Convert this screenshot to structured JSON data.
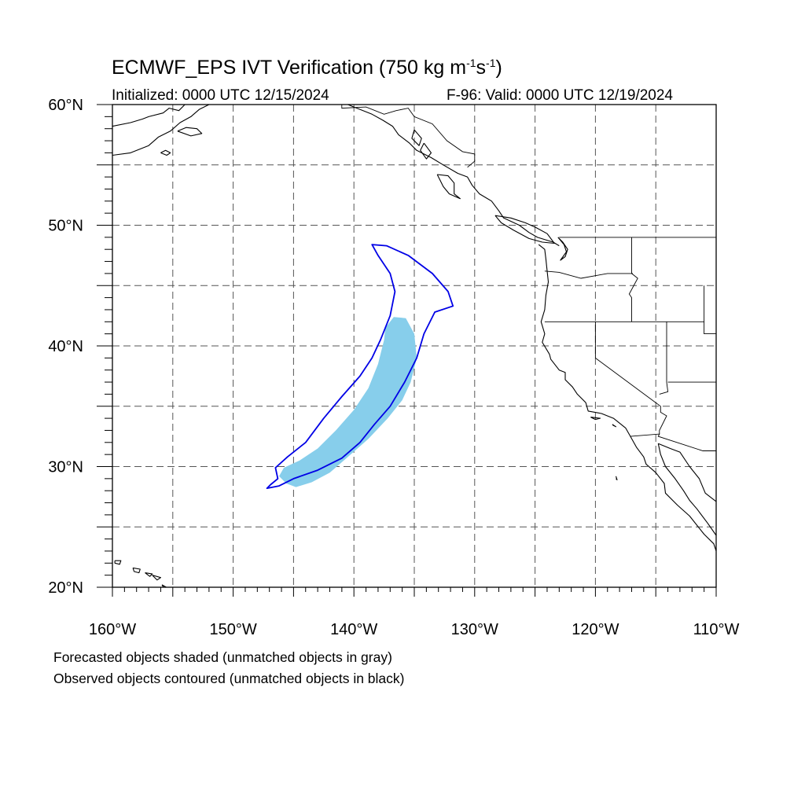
{
  "title": {
    "main_prefix": "ECMWF_EPS IVT Verification (750 kg m",
    "exp1": "-1",
    "mid": "s",
    "exp2": "-1",
    "suffix": ")"
  },
  "initialized": "Initialized: 0000 UTC 12/15/2024",
  "valid": "F-96: Valid: 0000 UTC 12/19/2024",
  "footnote_forecast": "Forecasted objects shaded (unmatched objects in gray)",
  "footnote_observed": "Observed objects contoured (unmatched objects in black)",
  "map": {
    "lon_range": [
      -160,
      -110
    ],
    "lat_range": [
      20,
      60
    ],
    "lon_labels": [
      {
        "lon": -160,
        "text": "160°W"
      },
      {
        "lon": -150,
        "text": "150°W"
      },
      {
        "lon": -140,
        "text": "140°W"
      },
      {
        "lon": -130,
        "text": "130°W"
      },
      {
        "lon": -120,
        "text": "120°W"
      },
      {
        "lon": -110,
        "text": "110°W"
      }
    ],
    "lat_labels": [
      {
        "lat": 60,
        "text": "60°N"
      },
      {
        "lat": 50,
        "text": "50°N"
      },
      {
        "lat": 40,
        "text": "40°N"
      },
      {
        "lat": 30,
        "text": "30°N"
      },
      {
        "lat": 20,
        "text": "20°N"
      }
    ],
    "grid_spacing_deg": 5,
    "forecast_fill_color": "#87ceeb",
    "observed_contour_color": "#0000e6",
    "forecast_object": [
      [
        -145.6,
        28.6
      ],
      [
        -146.2,
        29.2
      ],
      [
        -145.8,
        29.9
      ],
      [
        -144.5,
        30.5
      ],
      [
        -143.0,
        31.5
      ],
      [
        -141.5,
        33.0
      ],
      [
        -140.0,
        34.7
      ],
      [
        -138.8,
        36.5
      ],
      [
        -138.0,
        38.5
      ],
      [
        -137.5,
        40.5
      ],
      [
        -137.4,
        41.5
      ],
      [
        -136.7,
        42.4
      ],
      [
        -135.7,
        42.3
      ],
      [
        -135.0,
        41.0
      ],
      [
        -134.8,
        39.0
      ],
      [
        -135.3,
        37.0
      ],
      [
        -136.0,
        35.5
      ],
      [
        -137.2,
        34.0
      ],
      [
        -138.8,
        32.3
      ],
      [
        -140.5,
        30.8
      ],
      [
        -142.0,
        29.5
      ],
      [
        -143.5,
        28.7
      ],
      [
        -144.8,
        28.3
      ]
    ],
    "observed_object": [
      [
        -147.2,
        28.2
      ],
      [
        -146.2,
        28.4
      ],
      [
        -145.0,
        29.0
      ],
      [
        -143.0,
        29.7
      ],
      [
        -141.0,
        30.7
      ],
      [
        -139.5,
        32.0
      ],
      [
        -138.3,
        33.5
      ],
      [
        -137.0,
        35.0
      ],
      [
        -135.8,
        37.0
      ],
      [
        -134.8,
        39.0
      ],
      [
        -134.2,
        41.0
      ],
      [
        -133.3,
        42.8
      ],
      [
        -131.8,
        43.3
      ],
      [
        -132.2,
        44.5
      ],
      [
        -133.5,
        46.0
      ],
      [
        -135.5,
        47.5
      ],
      [
        -137.3,
        48.3
      ],
      [
        -138.5,
        48.4
      ],
      [
        -138.0,
        47.5
      ],
      [
        -137.0,
        46.0
      ],
      [
        -136.6,
        44.5
      ],
      [
        -137.0,
        42.5
      ],
      [
        -137.8,
        40.5
      ],
      [
        -138.5,
        39.0
      ],
      [
        -139.5,
        37.5
      ],
      [
        -141.0,
        35.8
      ],
      [
        -142.5,
        34.0
      ],
      [
        -144.0,
        32.0
      ],
      [
        -145.5,
        30.8
      ],
      [
        -146.5,
        29.9
      ],
      [
        -146.3,
        29.0
      ],
      [
        -146.9,
        28.5
      ]
    ],
    "coastlines": [
      [
        [
          -160,
          58.2
        ],
        [
          -158.5,
          58.5
        ],
        [
          -157.5,
          58.8
        ],
        [
          -157.0,
          59.0
        ],
        [
          -155.8,
          59.3
        ],
        [
          -155.3,
          59.7
        ],
        [
          -154.5,
          59.5
        ],
        [
          -154.0,
          60.0
        ]
      ],
      [
        [
          -160,
          55.8
        ],
        [
          -158.5,
          56.0
        ],
        [
          -157.0,
          56.6
        ],
        [
          -156.2,
          57.3
        ],
        [
          -155.2,
          57.8
        ],
        [
          -154.4,
          58.5
        ],
        [
          -153.5,
          59.0
        ],
        [
          -152.8,
          59.6
        ],
        [
          -152.0,
          60.0
        ]
      ],
      [
        [
          -154.6,
          57.8
        ],
        [
          -153.5,
          57.4
        ],
        [
          -152.6,
          57.6
        ],
        [
          -153.0,
          58.0
        ],
        [
          -153.9,
          58.1
        ],
        [
          -154.6,
          57.8
        ]
      ],
      [
        [
          -156.0,
          56.0
        ],
        [
          -155.5,
          55.8
        ],
        [
          -155.2,
          56.0
        ],
        [
          -155.6,
          56.2
        ],
        [
          -156.0,
          56.0
        ]
      ],
      [
        [
          -140.5,
          60.0
        ],
        [
          -140.0,
          59.8
        ],
        [
          -138.5,
          59.2
        ],
        [
          -137.6,
          58.7
        ],
        [
          -136.8,
          58.2
        ],
        [
          -136.3,
          57.5
        ],
        [
          -135.4,
          56.8
        ],
        [
          -134.8,
          56.2
        ],
        [
          -133.6,
          55.6
        ],
        [
          -132.6,
          55.0
        ],
        [
          -131.4,
          54.3
        ],
        [
          -130.6,
          54.0
        ],
        [
          -130.2,
          53.3
        ],
        [
          -129.6,
          52.6
        ],
        [
          -128.6,
          52.0
        ],
        [
          -128.0,
          51.2
        ],
        [
          -127.6,
          50.6
        ],
        [
          -126.3,
          50.0
        ],
        [
          -125.5,
          49.4
        ],
        [
          -124.8,
          49.0
        ],
        [
          -123.5,
          48.6
        ],
        [
          -123.0,
          48.3
        ]
      ],
      [
        [
          -133.1,
          54.2
        ],
        [
          -132.2,
          54.1
        ],
        [
          -131.7,
          53.5
        ],
        [
          -131.7,
          52.6
        ],
        [
          -131.2,
          52.2
        ],
        [
          -132.1,
          52.6
        ],
        [
          -132.6,
          53.2
        ],
        [
          -133.1,
          54.2
        ]
      ],
      [
        [
          -128.3,
          50.8
        ],
        [
          -127.0,
          50.6
        ],
        [
          -125.8,
          50.2
        ],
        [
          -124.9,
          49.8
        ],
        [
          -124.0,
          49.3
        ],
        [
          -123.4,
          48.5
        ],
        [
          -124.4,
          48.6
        ],
        [
          -125.5,
          48.9
        ],
        [
          -126.8,
          49.6
        ],
        [
          -127.8,
          50.2
        ],
        [
          -128.3,
          50.8
        ]
      ],
      [
        [
          -124.7,
          48.4
        ],
        [
          -124.2,
          48.0
        ],
        [
          -124.1,
          47.2
        ],
        [
          -124.0,
          46.2
        ],
        [
          -123.9,
          45.3
        ],
        [
          -124.1,
          44.2
        ],
        [
          -124.2,
          43.0
        ],
        [
          -124.5,
          42.0
        ],
        [
          -124.2,
          41.0
        ],
        [
          -124.4,
          40.3
        ],
        [
          -123.8,
          39.3
        ],
        [
          -123.7,
          38.9
        ],
        [
          -123.0,
          38.0
        ],
        [
          -122.5,
          37.8
        ],
        [
          -122.5,
          37.2
        ],
        [
          -121.9,
          36.6
        ],
        [
          -121.5,
          36.0
        ],
        [
          -120.8,
          35.3
        ],
        [
          -120.6,
          34.6
        ],
        [
          -119.5,
          34.4
        ],
        [
          -118.5,
          34.0
        ],
        [
          -117.5,
          33.2
        ],
        [
          -117.1,
          32.5
        ],
        [
          -116.6,
          31.6
        ],
        [
          -116.0,
          30.8
        ],
        [
          -115.8,
          30.2
        ],
        [
          -115.0,
          29.5
        ],
        [
          -114.3,
          28.6
        ],
        [
          -114.2,
          27.8
        ],
        [
          -113.2,
          26.8
        ],
        [
          -112.2,
          25.9
        ],
        [
          -111.0,
          24.4
        ],
        [
          -110.2,
          23.6
        ],
        [
          -110.0,
          23.0
        ]
      ],
      [
        [
          -114.8,
          31.9
        ],
        [
          -114.6,
          31.0
        ],
        [
          -114.2,
          30.0
        ],
        [
          -113.4,
          29.0
        ],
        [
          -112.7,
          28.0
        ],
        [
          -112.2,
          27.2
        ],
        [
          -111.6,
          26.5
        ],
        [
          -110.7,
          25.3
        ],
        [
          -110.0,
          24.3
        ]
      ],
      [
        [
          -114.8,
          31.9
        ],
        [
          -113.8,
          31.5
        ],
        [
          -113.0,
          31.2
        ],
        [
          -112.2,
          30.0
        ],
        [
          -111.4,
          29.0
        ],
        [
          -110.9,
          27.8
        ],
        [
          -110.0,
          27.1
        ]
      ],
      [
        [
          -123.1,
          49.0
        ],
        [
          -122.6,
          48.4
        ],
        [
          -122.4,
          47.8
        ],
        [
          -122.9,
          47.1
        ],
        [
          -122.5,
          47.4
        ],
        [
          -122.3,
          48.0
        ],
        [
          -122.7,
          48.6
        ],
        [
          -123.1,
          49.0
        ]
      ],
      [
        [
          -135.0,
          57.9
        ],
        [
          -134.4,
          57.2
        ],
        [
          -134.6,
          56.6
        ],
        [
          -135.2,
          57.2
        ],
        [
          -135.0,
          57.9
        ]
      ],
      [
        [
          -134.2,
          56.8
        ],
        [
          -133.6,
          56.0
        ],
        [
          -134.0,
          55.5
        ],
        [
          -134.5,
          56.2
        ],
        [
          -134.2,
          56.8
        ]
      ],
      [
        [
          -120.4,
          34.1
        ],
        [
          -119.6,
          34.0
        ],
        [
          -120.0,
          33.9
        ],
        [
          -120.4,
          34.1
        ]
      ],
      [
        [
          -118.6,
          33.5
        ],
        [
          -118.3,
          33.3
        ],
        [
          -118.5,
          33.4
        ],
        [
          -118.6,
          33.5
        ]
      ],
      [
        [
          -118.3,
          29.2
        ],
        [
          -118.2,
          28.9
        ],
        [
          -118.3,
          29.0
        ]
      ],
      [
        [
          -159.8,
          22.2
        ],
        [
          -159.3,
          22.2
        ],
        [
          -159.4,
          21.9
        ],
        [
          -159.8,
          22.0
        ],
        [
          -159.8,
          22.2
        ]
      ],
      [
        [
          -158.3,
          21.6
        ],
        [
          -157.7,
          21.5
        ],
        [
          -157.8,
          21.2
        ],
        [
          -158.2,
          21.3
        ],
        [
          -158.3,
          21.6
        ]
      ],
      [
        [
          -157.3,
          21.2
        ],
        [
          -156.7,
          21.1
        ],
        [
          -156.9,
          20.9
        ],
        [
          -157.3,
          21.2
        ]
      ],
      [
        [
          -156.7,
          21.0
        ],
        [
          -156.0,
          20.8
        ],
        [
          -156.3,
          20.6
        ],
        [
          -156.7,
          21.0
        ]
      ],
      [
        [
          -155.9,
          20.2
        ],
        [
          -155.0,
          19.7
        ],
        [
          -155.3,
          19.3
        ],
        [
          -155.9,
          20.2
        ]
      ]
    ],
    "borders": [
      [
        [
          -141.0,
          60.0
        ],
        [
          -141.0,
          59.7
        ],
        [
          -139.0,
          59.8
        ],
        [
          -137.5,
          59.2
        ],
        [
          -136.5,
          59.5
        ],
        [
          -135.5,
          59.7
        ],
        [
          -135.0,
          59.0
        ],
        [
          -133.5,
          58.4
        ],
        [
          -132.3,
          57.0
        ],
        [
          -131.0,
          56.1
        ],
        [
          -130.0,
          55.9
        ],
        [
          -130.0,
          55.3
        ],
        [
          -130.6,
          54.8
        ]
      ],
      [
        [
          -123.0,
          49.0
        ],
        [
          -110.0,
          49.0
        ]
      ],
      [
        [
          -124.2,
          46.2
        ],
        [
          -123.0,
          46.1
        ],
        [
          -121.2,
          45.6
        ],
        [
          -119.0,
          46.0
        ],
        [
          -116.9,
          46.0
        ]
      ],
      [
        [
          -117.0,
          49.0
        ],
        [
          -117.0,
          46.0
        ],
        [
          -116.5,
          45.6
        ],
        [
          -117.2,
          44.3
        ],
        [
          -117.0,
          44.0
        ],
        [
          -117.0,
          42.0
        ]
      ],
      [
        [
          -124.2,
          42.0
        ],
        [
          -111.0,
          42.0
        ]
      ],
      [
        [
          -120.0,
          42.0
        ],
        [
          -120.0,
          39.0
        ],
        [
          -114.6,
          35.0
        ],
        [
          -114.6,
          34.5
        ],
        [
          -114.1,
          34.2
        ],
        [
          -114.7,
          33.0
        ],
        [
          -114.7,
          32.7
        ]
      ],
      [
        [
          -114.1,
          42.0
        ],
        [
          -114.1,
          37.0
        ],
        [
          -114.0,
          36.2
        ],
        [
          -114.7,
          36.0
        ]
      ],
      [
        [
          -114.0,
          37.0
        ],
        [
          -110.0,
          37.0
        ]
      ],
      [
        [
          -111.0,
          45.0
        ],
        [
          -111.0,
          41.0
        ],
        [
          -110.0,
          41.0
        ]
      ],
      [
        [
          -117.1,
          32.5
        ],
        [
          -114.7,
          32.7
        ],
        [
          -114.8,
          32.5
        ],
        [
          -111.1,
          31.3
        ],
        [
          -110.0,
          31.3
        ]
      ]
    ]
  }
}
